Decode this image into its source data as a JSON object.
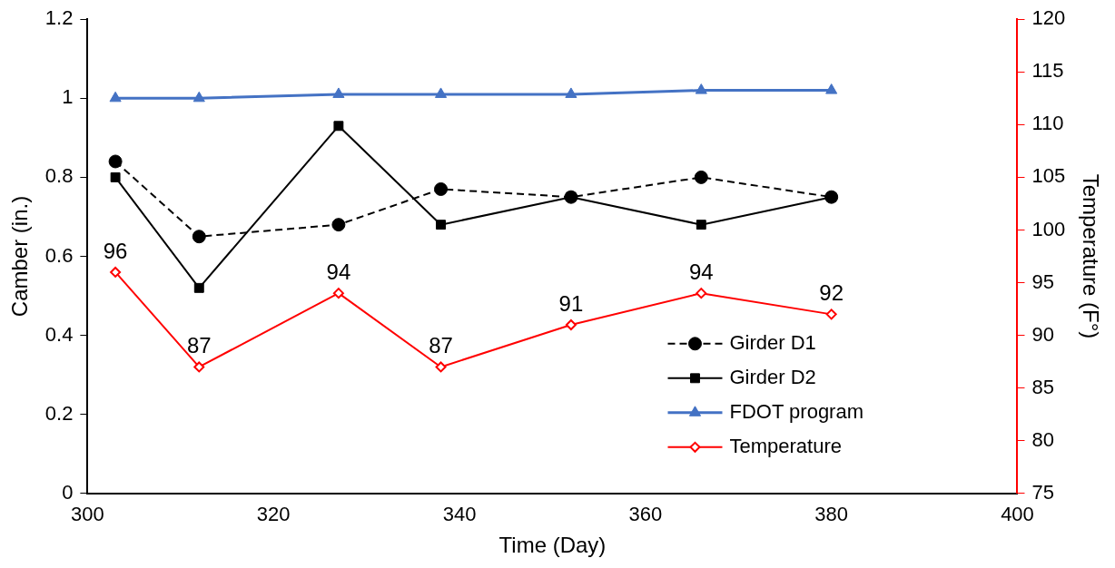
{
  "chart_data": {
    "type": "line",
    "xlabel": "Time (Day)",
    "ylabel": "Camber (in.)",
    "y2label": "Temperature (F°)",
    "x": [
      303,
      312,
      327,
      338,
      352,
      366,
      380
    ],
    "xlim": [
      300,
      400
    ],
    "xticks": [
      300,
      320,
      340,
      360,
      380,
      400
    ],
    "ylim": [
      0,
      1.2
    ],
    "yticks": [
      0,
      0.2,
      0.4,
      0.6,
      0.8,
      1,
      1.2
    ],
    "y2lim": [
      75,
      120
    ],
    "y2ticks": [
      75,
      80,
      85,
      90,
      95,
      100,
      105,
      110,
      115,
      120
    ],
    "legend": "bottom right",
    "grid": false,
    "series": [
      {
        "name": "Girder D1",
        "color": "#000000",
        "marker": "circle",
        "line_style": "dashed",
        "values": [
          0.84,
          0.65,
          0.68,
          0.77,
          0.75,
          0.8,
          0.75
        ]
      },
      {
        "name": "Girder D2",
        "color": "#000000",
        "marker": "square",
        "line_style": "solid",
        "values": [
          0.8,
          0.52,
          0.93,
          0.68,
          0.75,
          0.68,
          0.75
        ]
      },
      {
        "name": "FDOT program",
        "color": "#4472c4",
        "marker": "triangle",
        "line_style": "solid",
        "values": [
          1.0,
          1.0,
          1.01,
          1.01,
          1.01,
          1.02,
          1.02
        ]
      },
      {
        "name": "Temperature",
        "color": "#ff0000",
        "marker": "diamond",
        "line_style": "solid",
        "axis": "y2",
        "data_labels": true,
        "values": [
          96,
          87,
          94,
          87,
          91,
          94,
          92
        ]
      }
    ]
  }
}
